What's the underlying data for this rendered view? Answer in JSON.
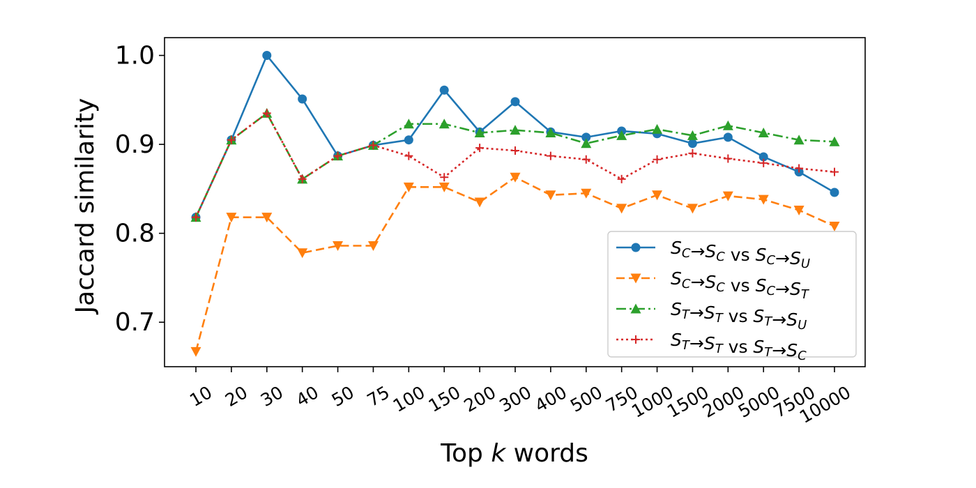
{
  "chart_data": {
    "type": "line",
    "xlabel_prefix": "Top ",
    "xlabel_var": "k",
    "xlabel_suffix": " words",
    "ylabel": "Jaccard similarity",
    "ylim": [
      0.65,
      1.02
    ],
    "yticks": [
      0.7,
      0.8,
      0.9,
      1.0
    ],
    "ytick_labels": [
      "0.7",
      "0.8",
      "0.9",
      "1.0"
    ],
    "categories": [
      "10",
      "20",
      "30",
      "40",
      "50",
      "75",
      "100",
      "150",
      "200",
      "300",
      "400",
      "500",
      "750",
      "1000",
      "1500",
      "2000",
      "5000",
      "7500",
      "10000"
    ],
    "legend_position": "lower-right",
    "series": [
      {
        "name": "S_C→S_C vs S_C→S_U",
        "label": {
          "a": "S",
          "as": "C",
          "b": "S",
          "bs": "C",
          "c": "S",
          "cs": "C",
          "d": "S",
          "ds": "U"
        },
        "color": "#1f77b4",
        "linestyle": "solid",
        "marker": "circle",
        "values": [
          0.818,
          0.905,
          1.0,
          0.951,
          0.887,
          0.899,
          0.905,
          0.961,
          0.914,
          0.948,
          0.914,
          0.908,
          0.915,
          0.912,
          0.901,
          0.908,
          0.886,
          0.869,
          0.846
        ]
      },
      {
        "name": "S_C→S_C vs S_C→S_T",
        "label": {
          "a": "S",
          "as": "C",
          "b": "S",
          "bs": "C",
          "c": "S",
          "cs": "C",
          "d": "S",
          "ds": "T"
        },
        "color": "#ff7f0e",
        "linestyle": "dashed",
        "marker": "triangle-down",
        "values": [
          0.667,
          0.818,
          0.818,
          0.778,
          0.786,
          0.786,
          0.852,
          0.852,
          0.835,
          0.863,
          0.843,
          0.845,
          0.828,
          0.843,
          0.828,
          0.842,
          0.838,
          0.826,
          0.808
        ]
      },
      {
        "name": "S_T→S_T vs S_T→S_U",
        "label": {
          "a": "S",
          "as": "T",
          "b": "S",
          "bs": "T",
          "c": "S",
          "cs": "T",
          "d": "S",
          "ds": "U"
        },
        "color": "#2ca02c",
        "linestyle": "dashdot",
        "marker": "triangle-up",
        "values": [
          0.818,
          0.905,
          0.935,
          0.861,
          0.887,
          0.899,
          0.923,
          0.923,
          0.913,
          0.916,
          0.913,
          0.901,
          0.91,
          0.917,
          0.91,
          0.921,
          0.913,
          0.905,
          0.903
        ]
      },
      {
        "name": "S_T→S_T vs S_T→S_C",
        "label": {
          "a": "S",
          "as": "T",
          "b": "S",
          "bs": "T",
          "c": "S",
          "cs": "T",
          "d": "S",
          "ds": "C"
        },
        "color": "#d62728",
        "linestyle": "dotted",
        "marker": "plus",
        "values": [
          0.818,
          0.905,
          0.935,
          0.861,
          0.887,
          0.899,
          0.887,
          0.863,
          0.896,
          0.893,
          0.887,
          0.883,
          0.861,
          0.883,
          0.89,
          0.884,
          0.879,
          0.873,
          0.869
        ]
      }
    ]
  }
}
